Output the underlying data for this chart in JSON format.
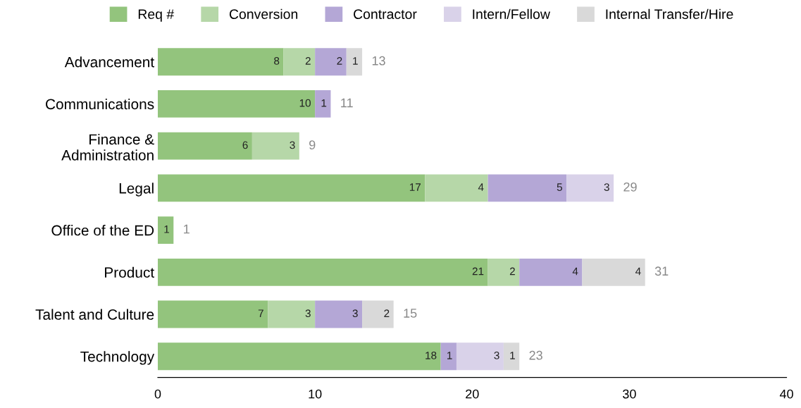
{
  "chart_data": {
    "type": "bar",
    "orientation": "horizontal",
    "stacked": true,
    "data_labels": true,
    "legend": "top",
    "grid": false,
    "categories": [
      "Advancement",
      "Communications",
      "Finance &\nAdministration",
      "Legal",
      "Office of the ED",
      "Product",
      "Talent and Culture",
      "Technology"
    ],
    "series": [
      {
        "name": "Req #",
        "color": "#93c47d",
        "values": [
          8,
          10,
          6,
          17,
          1,
          21,
          7,
          18
        ]
      },
      {
        "name": "Conversion",
        "color": "#b6d7a8",
        "values": [
          2,
          null,
          3,
          4,
          null,
          2,
          3,
          null
        ]
      },
      {
        "name": "Contractor",
        "color": "#b4a7d6",
        "values": [
          2,
          1,
          null,
          5,
          null,
          4,
          3,
          1
        ]
      },
      {
        "name": "Intern/Fellow",
        "color": "#d9d2e9",
        "values": [
          null,
          null,
          null,
          3,
          null,
          null,
          null,
          3
        ]
      },
      {
        "name": "Internal Transfer/Hire",
        "color": "#d9d9d9",
        "values": [
          1,
          null,
          null,
          null,
          null,
          4,
          2,
          1
        ]
      }
    ],
    "totals": [
      "13",
      "11",
      "9",
      "29",
      "1",
      "31",
      "15",
      "23"
    ],
    "xlim": [
      0,
      40
    ],
    "xticks": [
      0,
      10,
      20,
      30,
      40
    ]
  }
}
